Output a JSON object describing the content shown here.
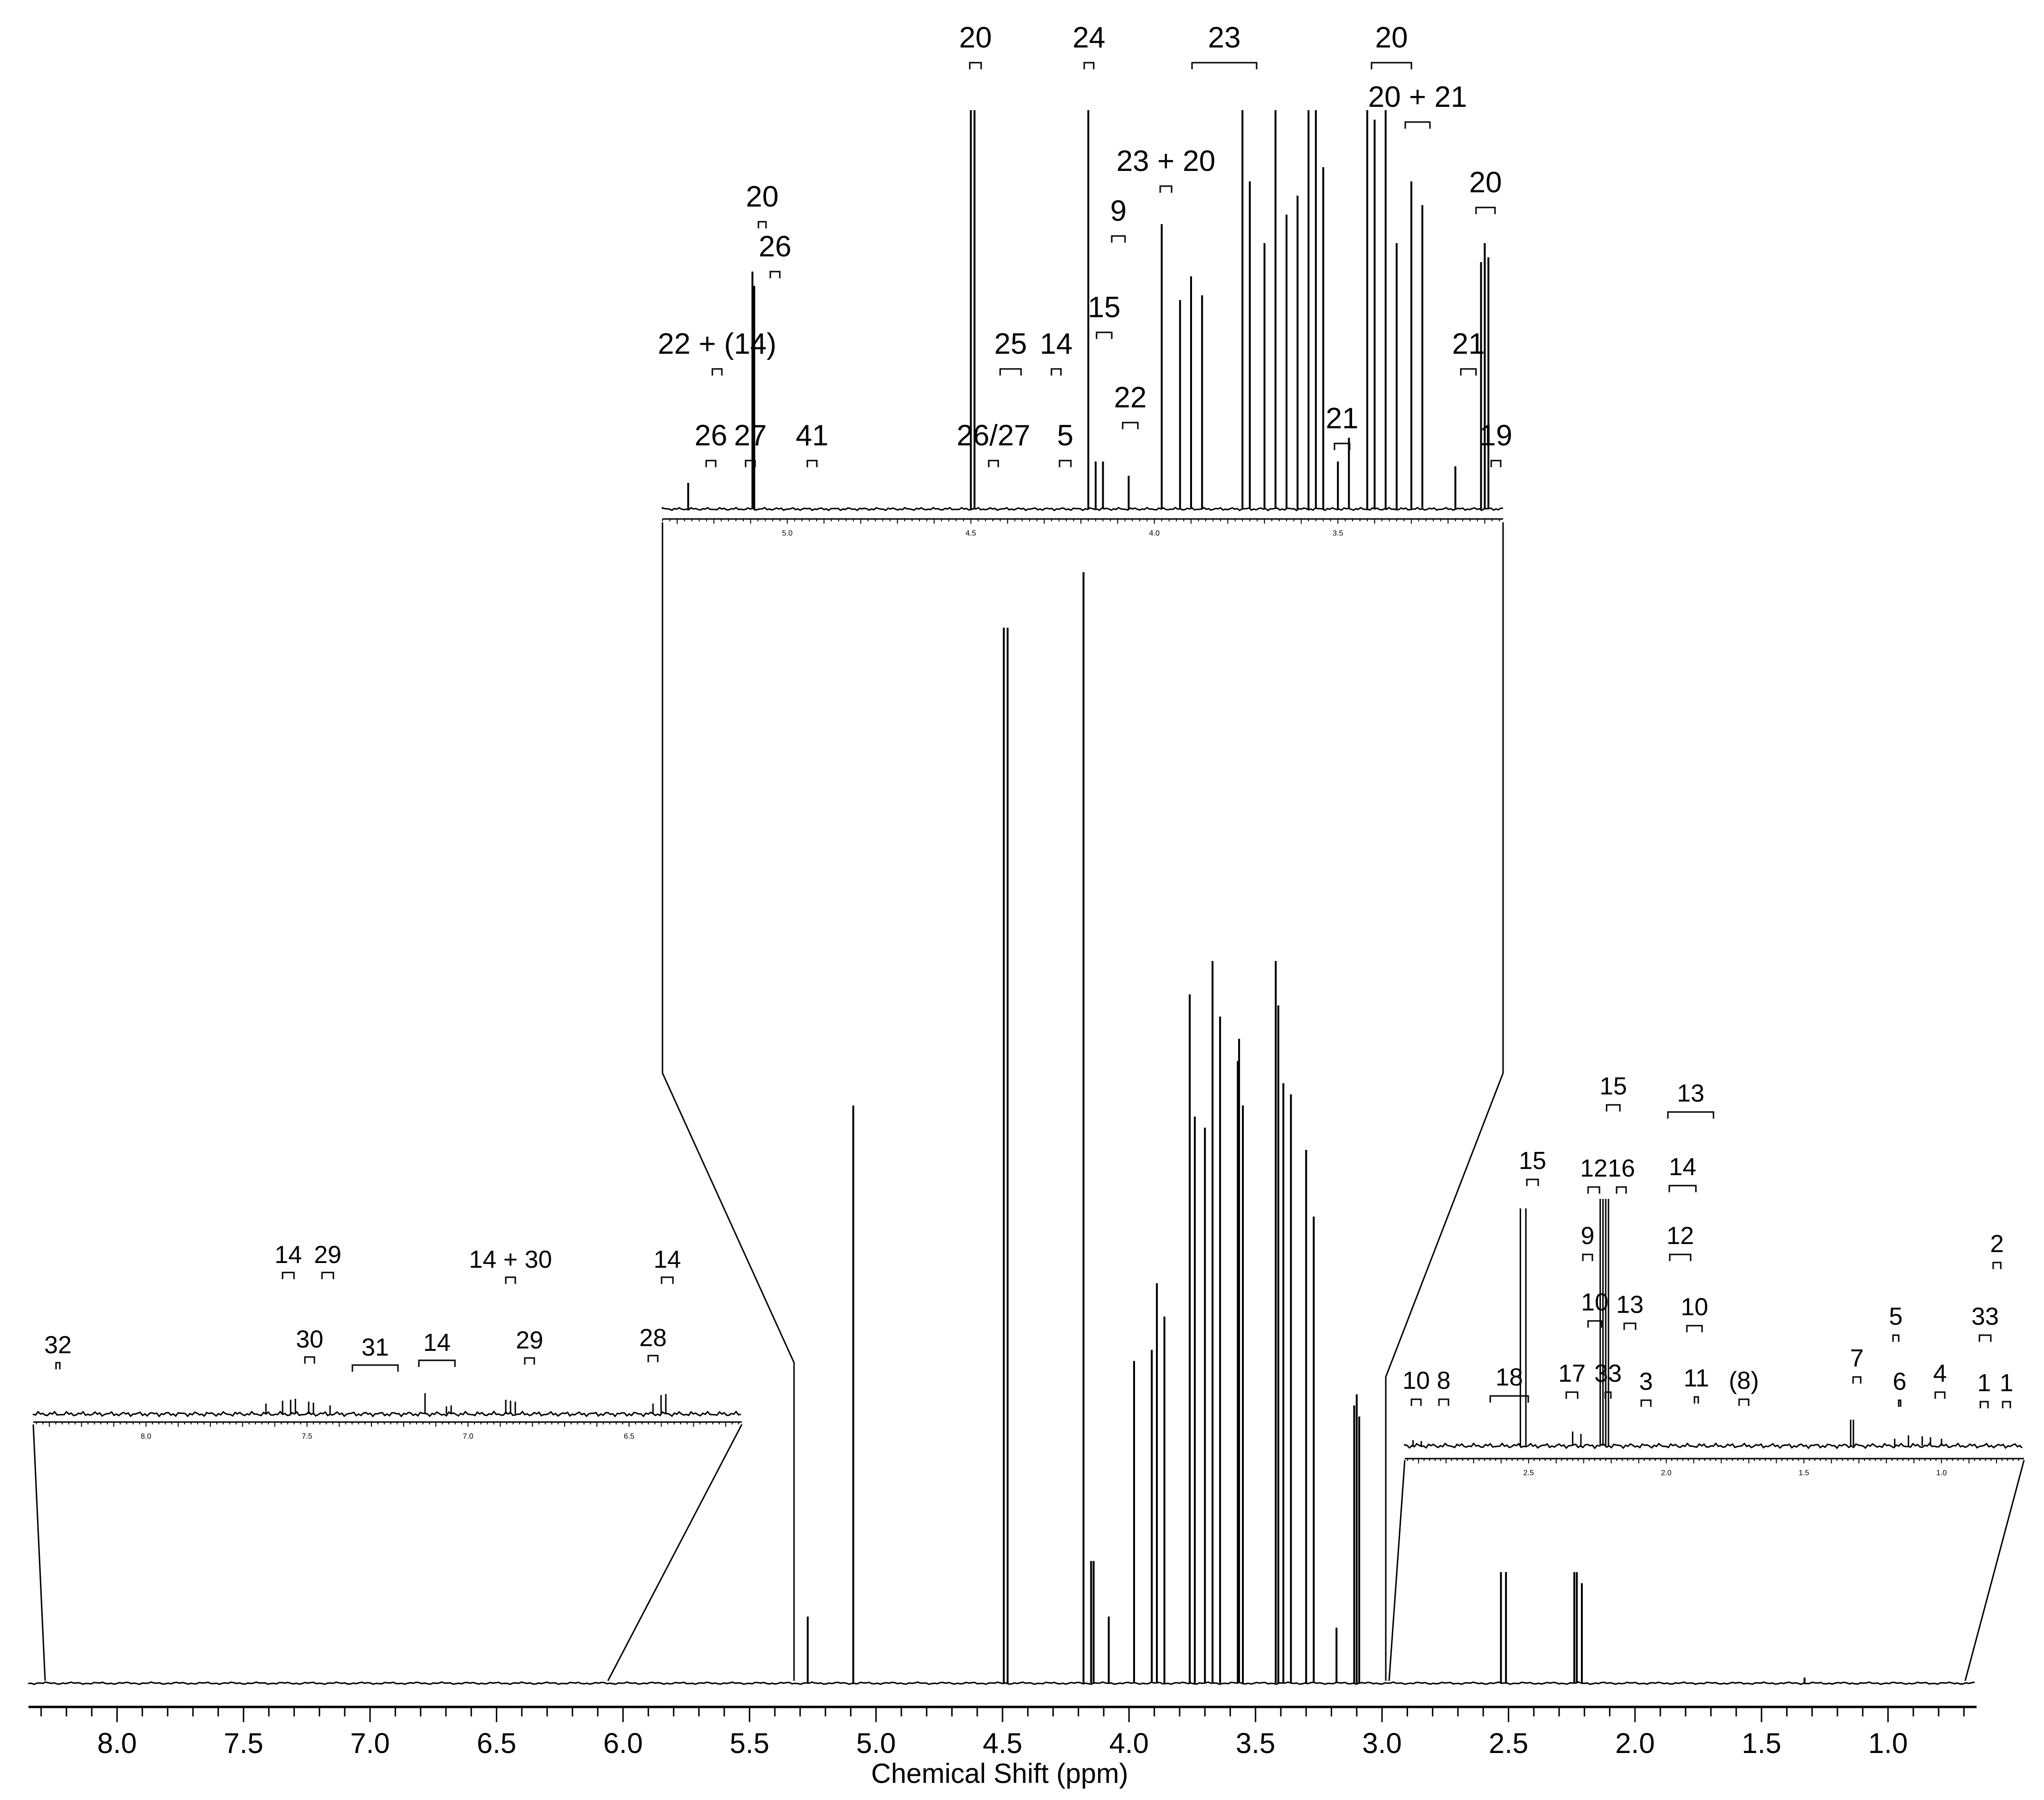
{
  "chart_data": {
    "type": "line",
    "title": "",
    "xlabel": "Chemical Shift (ppm)",
    "ylabel": "",
    "xlim": [
      8.35,
      0.65
    ],
    "x_reversed": true,
    "grid": false,
    "main": {
      "tick_labels": [
        "8.0",
        "7.5",
        "7.0",
        "6.5",
        "6.0",
        "5.5",
        "5.0",
        "4.5",
        "4.0",
        "3.5",
        "3.0",
        "2.5",
        "2.0",
        "1.5",
        "1.0"
      ],
      "peaks": [
        {
          "x": 5.27,
          "y": 0.06
        },
        {
          "x": 5.09,
          "y": 0.52
        },
        {
          "x": 4.495,
          "y": 0.95
        },
        {
          "x": 4.48,
          "y": 0.95
        },
        {
          "x": 4.18,
          "y": 1.0
        },
        {
          "x": 4.15,
          "y": 0.11
        },
        {
          "x": 4.14,
          "y": 0.11
        },
        {
          "x": 4.08,
          "y": 0.06
        },
        {
          "x": 3.98,
          "y": 0.29
        },
        {
          "x": 3.91,
          "y": 0.3
        },
        {
          "x": 3.89,
          "y": 0.36
        },
        {
          "x": 3.86,
          "y": 0.33
        },
        {
          "x": 3.76,
          "y": 0.62
        },
        {
          "x": 3.74,
          "y": 0.51
        },
        {
          "x": 3.7,
          "y": 0.5
        },
        {
          "x": 3.67,
          "y": 0.65
        },
        {
          "x": 3.64,
          "y": 0.6
        },
        {
          "x": 3.57,
          "y": 0.56
        },
        {
          "x": 3.565,
          "y": 0.58
        },
        {
          "x": 3.55,
          "y": 0.52
        },
        {
          "x": 3.42,
          "y": 0.65
        },
        {
          "x": 3.41,
          "y": 0.61
        },
        {
          "x": 3.39,
          "y": 0.54
        },
        {
          "x": 3.36,
          "y": 0.53
        },
        {
          "x": 3.3,
          "y": 0.48
        },
        {
          "x": 3.27,
          "y": 0.42
        },
        {
          "x": 3.18,
          "y": 0.05
        },
        {
          "x": 3.11,
          "y": 0.25
        },
        {
          "x": 3.1,
          "y": 0.26
        },
        {
          "x": 3.09,
          "y": 0.24
        },
        {
          "x": 2.53,
          "y": 0.1
        },
        {
          "x": 2.51,
          "y": 0.1
        },
        {
          "x": 2.24,
          "y": 0.1
        },
        {
          "x": 2.23,
          "y": 0.1
        },
        {
          "x": 2.21,
          "y": 0.09
        },
        {
          "x": 1.33,
          "y": 0.005
        }
      ]
    },
    "insets": [
      {
        "name": "left",
        "tick_labels": [
          "8.0",
          "7.5",
          "7.0",
          "6.5"
        ],
        "annotations": [
          "32",
          "14",
          "29",
          "30",
          "31",
          "14",
          "14 + 30",
          "29",
          "14",
          "28"
        ]
      },
      {
        "name": "top",
        "tick_labels": [
          "5.0",
          "4.5",
          "4.0",
          "3.5"
        ],
        "annotations": [
          "20",
          "24",
          "23",
          "20",
          "20 + 21",
          "23 + 20",
          "20",
          "9",
          "20",
          "26",
          "15",
          "22 + (14)",
          "25",
          "14",
          "21",
          "22",
          "26",
          "27",
          "41",
          "26/27",
          "5",
          "21",
          "19"
        ]
      },
      {
        "name": "right",
        "tick_labels": [
          "2.5",
          "2.0",
          "1.5",
          "1.0"
        ],
        "annotations": [
          "15",
          "13",
          "15",
          "12",
          "16",
          "14",
          "9",
          "12",
          "2",
          "10",
          "13",
          "10",
          "5",
          "33",
          "7",
          "10",
          "8",
          "18",
          "17",
          "33",
          "3",
          "11",
          "(8)",
          "6",
          "4",
          "1",
          "1"
        ]
      }
    ]
  }
}
